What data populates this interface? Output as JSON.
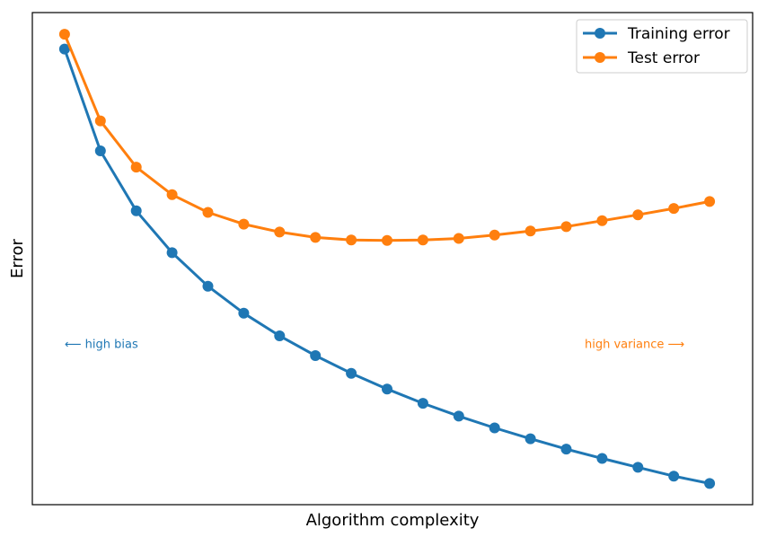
{
  "colors": {
    "training": "#1f77b4",
    "test": "#ff7f0e",
    "frame": "#000000"
  },
  "chart_data": {
    "type": "line",
    "xlabel": "Algorithm complexity",
    "ylabel": "Error",
    "grid": false,
    "xticks": false,
    "yticks": false,
    "legend_position": "top-right",
    "x": [
      1,
      2,
      3,
      4,
      5,
      6,
      7,
      8,
      9,
      10,
      11,
      12,
      13,
      14,
      15,
      16,
      17,
      18,
      19
    ],
    "xlim": [
      0.1,
      20.2
    ],
    "ylim": [
      0,
      1
    ],
    "series": [
      {
        "name": "Training error",
        "values": [
          0.926,
          0.719,
          0.597,
          0.512,
          0.444,
          0.389,
          0.343,
          0.303,
          0.267,
          0.235,
          0.206,
          0.18,
          0.156,
          0.134,
          0.113,
          0.094,
          0.076,
          0.058,
          0.043
        ]
      },
      {
        "name": "Test error",
        "values": [
          0.956,
          0.78,
          0.686,
          0.63,
          0.594,
          0.57,
          0.554,
          0.543,
          0.538,
          0.537,
          0.538,
          0.541,
          0.548,
          0.556,
          0.565,
          0.577,
          0.589,
          0.602,
          0.616
        ]
      }
    ],
    "annotations": [
      {
        "text": "⟵  high bias",
        "series": "Training error",
        "x": 1,
        "y": 0.318,
        "anchor": "start"
      },
      {
        "text": "high variance  ⟶",
        "series": "Test error",
        "x": 18.3,
        "y": 0.318,
        "anchor": "end"
      }
    ]
  }
}
